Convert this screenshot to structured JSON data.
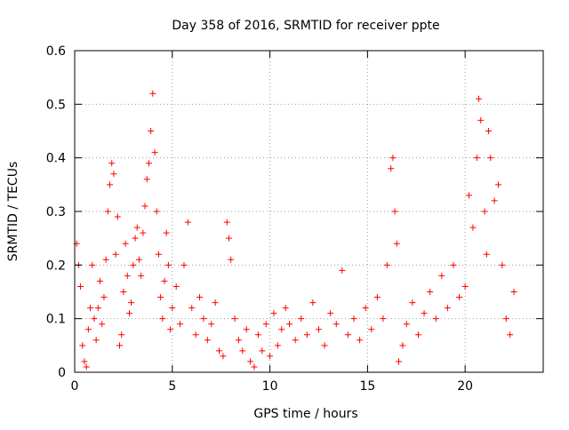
{
  "chart_data": {
    "type": "scatter",
    "title": "Day 358 of 2016, SRMTID for receiver ppte",
    "xlabel": "GPS time / hours",
    "ylabel": "SRMTID / TECUs",
    "xlim": [
      0,
      24
    ],
    "ylim": [
      0,
      0.6
    ],
    "xticks": [
      0,
      5,
      10,
      15,
      20
    ],
    "xtick_labels": [
      "0",
      "5",
      "10",
      "15",
      "20"
    ],
    "yticks": [
      0,
      0.1,
      0.2,
      0.3,
      0.4,
      0.5,
      0.6
    ],
    "ytick_labels": [
      "0",
      "0.1",
      "0.2",
      "0.3",
      "0.4",
      "0.5",
      "0.6"
    ],
    "grid": true,
    "marker": "+",
    "color": "#ff0000",
    "series": [
      {
        "name": "SRMTID",
        "points": [
          [
            0.1,
            0.24
          ],
          [
            0.2,
            0.2
          ],
          [
            0.3,
            0.16
          ],
          [
            0.4,
            0.05
          ],
          [
            0.5,
            0.02
          ],
          [
            0.6,
            0.01
          ],
          [
            0.7,
            0.08
          ],
          [
            0.8,
            0.12
          ],
          [
            0.9,
            0.2
          ],
          [
            1.0,
            0.1
          ],
          [
            1.1,
            0.06
          ],
          [
            1.2,
            0.12
          ],
          [
            1.3,
            0.17
          ],
          [
            1.4,
            0.09
          ],
          [
            1.5,
            0.14
          ],
          [
            1.6,
            0.21
          ],
          [
            1.7,
            0.3
          ],
          [
            1.8,
            0.35
          ],
          [
            1.9,
            0.39
          ],
          [
            2.0,
            0.37
          ],
          [
            2.1,
            0.22
          ],
          [
            2.2,
            0.29
          ],
          [
            2.3,
            0.05
          ],
          [
            2.4,
            0.07
          ],
          [
            2.5,
            0.15
          ],
          [
            2.6,
            0.24
          ],
          [
            2.7,
            0.18
          ],
          [
            2.8,
            0.11
          ],
          [
            2.9,
            0.13
          ],
          [
            3.0,
            0.2
          ],
          [
            3.1,
            0.25
          ],
          [
            3.2,
            0.27
          ],
          [
            3.3,
            0.21
          ],
          [
            3.4,
            0.18
          ],
          [
            3.5,
            0.26
          ],
          [
            3.6,
            0.31
          ],
          [
            3.7,
            0.36
          ],
          [
            3.8,
            0.39
          ],
          [
            3.9,
            0.45
          ],
          [
            4.0,
            0.52
          ],
          [
            4.1,
            0.41
          ],
          [
            4.2,
            0.3
          ],
          [
            4.3,
            0.22
          ],
          [
            4.4,
            0.14
          ],
          [
            4.5,
            0.1
          ],
          [
            4.6,
            0.17
          ],
          [
            4.7,
            0.26
          ],
          [
            4.8,
            0.2
          ],
          [
            4.9,
            0.08
          ],
          [
            5.0,
            0.12
          ],
          [
            5.2,
            0.16
          ],
          [
            5.4,
            0.09
          ],
          [
            5.6,
            0.2
          ],
          [
            5.8,
            0.28
          ],
          [
            6.0,
            0.12
          ],
          [
            6.2,
            0.07
          ],
          [
            6.4,
            0.14
          ],
          [
            6.6,
            0.1
          ],
          [
            6.8,
            0.06
          ],
          [
            7.0,
            0.09
          ],
          [
            7.2,
            0.13
          ],
          [
            7.4,
            0.04
          ],
          [
            7.6,
            0.03
          ],
          [
            7.8,
            0.28
          ],
          [
            7.9,
            0.25
          ],
          [
            8.0,
            0.21
          ],
          [
            8.2,
            0.1
          ],
          [
            8.4,
            0.06
          ],
          [
            8.6,
            0.04
          ],
          [
            8.8,
            0.08
          ],
          [
            9.0,
            0.02
          ],
          [
            9.2,
            0.01
          ],
          [
            9.4,
            0.07
          ],
          [
            9.6,
            0.04
          ],
          [
            9.8,
            0.09
          ],
          [
            10.0,
            0.03
          ],
          [
            10.2,
            0.11
          ],
          [
            10.4,
            0.05
          ],
          [
            10.6,
            0.08
          ],
          [
            10.8,
            0.12
          ],
          [
            11.0,
            0.09
          ],
          [
            11.3,
            0.06
          ],
          [
            11.6,
            0.1
          ],
          [
            11.9,
            0.07
          ],
          [
            12.2,
            0.13
          ],
          [
            12.5,
            0.08
          ],
          [
            12.8,
            0.05
          ],
          [
            13.1,
            0.11
          ],
          [
            13.4,
            0.09
          ],
          [
            13.7,
            0.19
          ],
          [
            14.0,
            0.07
          ],
          [
            14.3,
            0.1
          ],
          [
            14.6,
            0.06
          ],
          [
            14.9,
            0.12
          ],
          [
            15.2,
            0.08
          ],
          [
            15.5,
            0.14
          ],
          [
            15.8,
            0.1
          ],
          [
            16.0,
            0.2
          ],
          [
            16.2,
            0.38
          ],
          [
            16.3,
            0.4
          ],
          [
            16.4,
            0.3
          ],
          [
            16.5,
            0.24
          ],
          [
            16.6,
            0.02
          ],
          [
            16.8,
            0.05
          ],
          [
            17.0,
            0.09
          ],
          [
            17.3,
            0.13
          ],
          [
            17.6,
            0.07
          ],
          [
            17.9,
            0.11
          ],
          [
            18.2,
            0.15
          ],
          [
            18.5,
            0.1
          ],
          [
            18.8,
            0.18
          ],
          [
            19.1,
            0.12
          ],
          [
            19.4,
            0.2
          ],
          [
            19.7,
            0.14
          ],
          [
            20.0,
            0.16
          ],
          [
            20.2,
            0.33
          ],
          [
            20.4,
            0.27
          ],
          [
            20.6,
            0.4
          ],
          [
            20.7,
            0.51
          ],
          [
            20.8,
            0.47
          ],
          [
            21.0,
            0.3
          ],
          [
            21.1,
            0.22
          ],
          [
            21.2,
            0.45
          ],
          [
            21.3,
            0.4
          ],
          [
            21.5,
            0.32
          ],
          [
            21.7,
            0.35
          ],
          [
            21.9,
            0.2
          ],
          [
            22.1,
            0.1
          ],
          [
            22.3,
            0.07
          ],
          [
            22.5,
            0.15
          ]
        ]
      }
    ]
  }
}
